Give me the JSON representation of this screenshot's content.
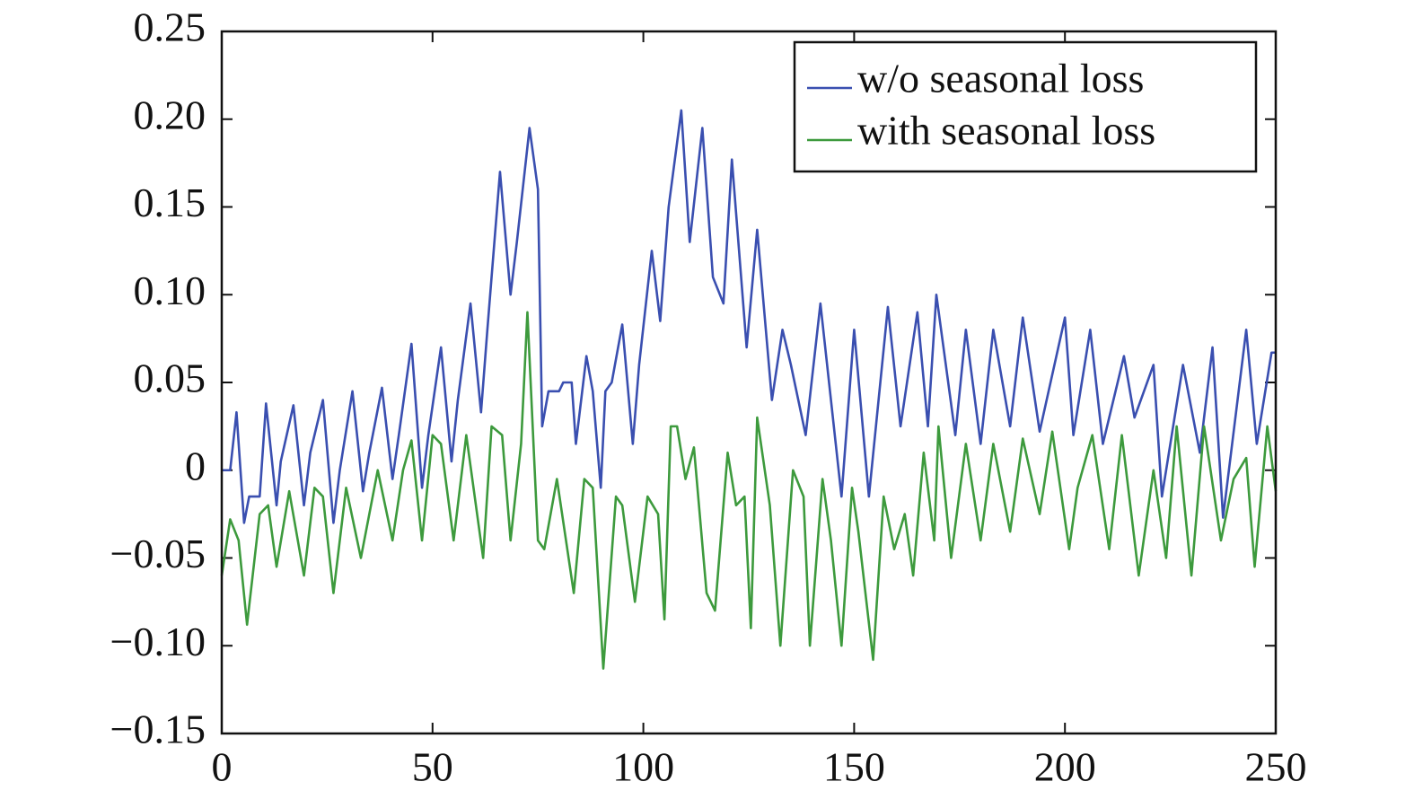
{
  "chart_data": {
    "type": "line",
    "xlim": [
      0,
      250
    ],
    "xticks": [
      0,
      50,
      100,
      150,
      200,
      250
    ],
    "ylim": [
      -0.15,
      0.25
    ],
    "yticks": [
      {
        "value": 0.25,
        "label": "0.25"
      },
      {
        "value": 0.2,
        "label": "0.20"
      },
      {
        "value": 0.15,
        "label": "0.15"
      },
      {
        "value": 0.1,
        "label": "0.10"
      },
      {
        "value": 0.05,
        "label": "0.05"
      },
      0,
      {
        "value": -0.05,
        "label": "−0.05"
      },
      {
        "value": -0.1,
        "label": "−0.10"
      },
      {
        "value": -0.15,
        "label": "−0.15"
      }
    ],
    "legend": "upper right",
    "series": [
      {
        "name": "w/o seasonal loss",
        "color": "#3a4fb0",
        "x": [
          0,
          2,
          3.5,
          5.3,
          6.5,
          9,
          10.5,
          13,
          14,
          17,
          19.5,
          21,
          24,
          26.5,
          28,
          31,
          33.5,
          35,
          38,
          40.5,
          42,
          45,
          47.5,
          49,
          52,
          54.5,
          56,
          59,
          61.5,
          63,
          66,
          68.5,
          70,
          73,
          75,
          76,
          77.5,
          80,
          81,
          83,
          84,
          86.5,
          88,
          89.9,
          91,
          92.5,
          95,
          97.5,
          99,
          102,
          104,
          106,
          109,
          111,
          114,
          116.5,
          119,
          121,
          124.5,
          127,
          130.5,
          133,
          135,
          138.5,
          142,
          147,
          150,
          153.5,
          158,
          161,
          165,
          167.5,
          169.5,
          174,
          176.5,
          180,
          183,
          187,
          190,
          194,
          200,
          202,
          206,
          209,
          214,
          216.5,
          221,
          223,
          228,
          232,
          235,
          237.5,
          243,
          245.5,
          249,
          250
        ],
        "values": [
          0,
          0,
          0.033,
          -0.03,
          -0.015,
          -0.015,
          0.038,
          -0.02,
          0.005,
          0.037,
          -0.02,
          0.01,
          0.04,
          -0.03,
          0,
          0.045,
          -0.012,
          0.01,
          0.047,
          -0.005,
          0.02,
          0.072,
          -0.01,
          0.02,
          0.07,
          0.005,
          0.04,
          0.095,
          0.033,
          0.08,
          0.17,
          0.1,
          0.13,
          0.195,
          0.16,
          0.025,
          0.045,
          0.045,
          0.05,
          0.05,
          0.015,
          0.065,
          0.045,
          -0.01,
          0.045,
          0.05,
          0.083,
          0.015,
          0.06,
          0.125,
          0.085,
          0.15,
          0.205,
          0.13,
          0.195,
          0.11,
          0.095,
          0.177,
          0.07,
          0.137,
          0.04,
          0.08,
          0.06,
          0.02,
          0.095,
          -0.015,
          0.08,
          -0.015,
          0.093,
          0.025,
          0.09,
          0.025,
          0.1,
          0.02,
          0.08,
          0.015,
          0.08,
          0.025,
          0.087,
          0.022,
          0.087,
          0.02,
          0.08,
          0.015,
          0.065,
          0.03,
          0.06,
          -0.015,
          0.06,
          0.01,
          0.07,
          -0.027,
          0.08,
          0.015,
          0.067,
          0.067
        ]
      },
      {
        "name": "with seasonal loss",
        "color": "#3d9a3d",
        "x": [
          0,
          2,
          4,
          6,
          9,
          11,
          13,
          16,
          19.5,
          22,
          24,
          26.5,
          29.5,
          33,
          37,
          40.5,
          43,
          45,
          47.5,
          50,
          52,
          55,
          58,
          62,
          64,
          66.5,
          68.5,
          71,
          72.5,
          75,
          76.5,
          78,
          79.5,
          83.5,
          86,
          88,
          90.5,
          93.5,
          95,
          98,
          101,
          103.5,
          105,
          106.5,
          108,
          110,
          112,
          115,
          117,
          120,
          122,
          124,
          125.5,
          127,
          130,
          132.5,
          135.5,
          138,
          139.5,
          142.5,
          144.5,
          147,
          149.5,
          151,
          154.5,
          157,
          159.5,
          162,
          164,
          166.5,
          169,
          170,
          173,
          176.5,
          180,
          183,
          187,
          190,
          194,
          197,
          201,
          203,
          206.5,
          210.5,
          213.5,
          217.5,
          221,
          224,
          226.5,
          230,
          233,
          237,
          240,
          243,
          245,
          248,
          250
        ],
        "values": [
          -0.06,
          -0.028,
          -0.04,
          -0.088,
          -0.025,
          -0.02,
          -0.055,
          -0.012,
          -0.06,
          -0.01,
          -0.015,
          -0.07,
          -0.01,
          -0.05,
          0,
          -0.04,
          0,
          0.017,
          -0.04,
          0.02,
          0.015,
          -0.04,
          0.02,
          -0.05,
          0.025,
          0.02,
          -0.04,
          0.015,
          0.09,
          -0.04,
          -0.045,
          -0.025,
          -0.005,
          -0.07,
          -0.005,
          -0.01,
          -0.113,
          -0.015,
          -0.02,
          -0.075,
          -0.015,
          -0.025,
          -0.085,
          0.025,
          0.025,
          -0.005,
          0.013,
          -0.07,
          -0.08,
          0.01,
          -0.02,
          -0.015,
          -0.09,
          0.03,
          -0.02,
          -0.1,
          0,
          -0.015,
          -0.1,
          -0.005,
          -0.04,
          -0.1,
          -0.01,
          -0.035,
          -0.108,
          -0.015,
          -0.045,
          -0.025,
          -0.06,
          0.01,
          -0.04,
          0.025,
          -0.05,
          0.015,
          -0.04,
          0.015,
          -0.035,
          0.018,
          -0.025,
          0.022,
          -0.045,
          -0.01,
          0.02,
          -0.045,
          0.02,
          -0.06,
          0,
          -0.05,
          0.025,
          -0.06,
          0.025,
          -0.04,
          -0.005,
          0.007,
          -0.055,
          0.025,
          -0.012
        ]
      }
    ]
  }
}
